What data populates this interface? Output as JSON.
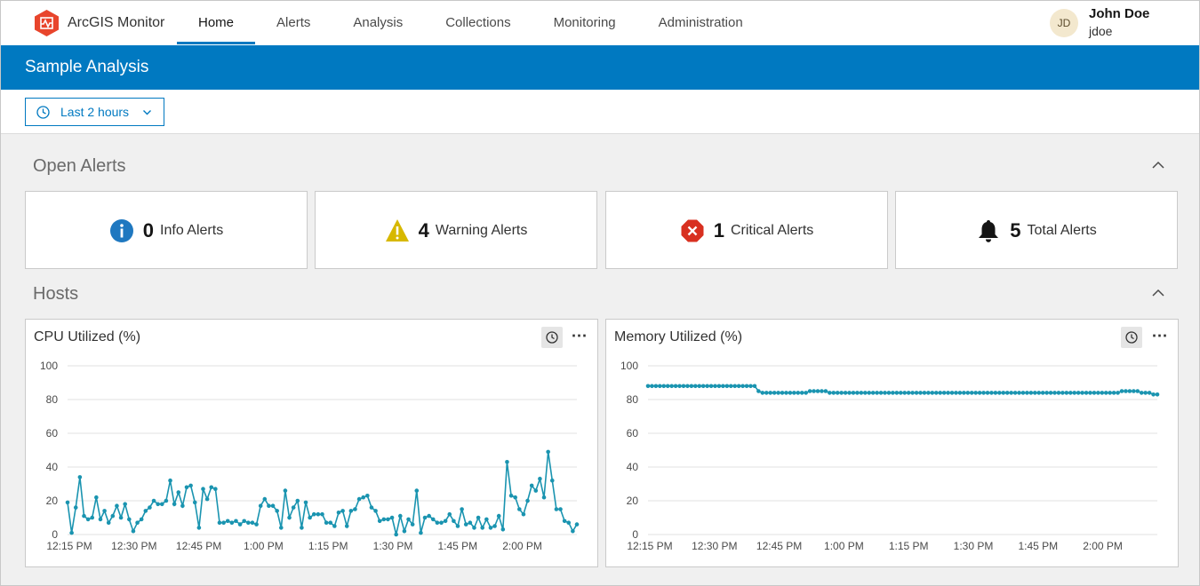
{
  "app": {
    "name": "ArcGIS Monitor",
    "brand_color": "#e8452c"
  },
  "nav": {
    "items": [
      {
        "label": "Home",
        "active": true
      },
      {
        "label": "Alerts"
      },
      {
        "label": "Analysis"
      },
      {
        "label": "Collections"
      },
      {
        "label": "Monitoring"
      },
      {
        "label": "Administration"
      }
    ]
  },
  "user": {
    "initials": "JD",
    "name": "John Doe",
    "username": "jdoe"
  },
  "banner": {
    "title": "Sample Analysis",
    "color": "#0079c1"
  },
  "time_filter": {
    "label": "Last 2 hours",
    "icon": "clock-icon"
  },
  "sections": {
    "open_alerts": "Open Alerts",
    "hosts": "Hosts"
  },
  "alerts": [
    {
      "icon": "info-icon",
      "count": "0",
      "label": "Info Alerts",
      "color": "#1f78c0"
    },
    {
      "icon": "warning-icon",
      "count": "4",
      "label": "Warning Alerts",
      "color": "#d7b800"
    },
    {
      "icon": "critical-icon",
      "count": "1",
      "label": "Critical Alerts",
      "color": "#d83020"
    },
    {
      "icon": "bell-icon",
      "count": "5",
      "label": "Total Alerts",
      "color": "#151515"
    }
  ],
  "chart_data": [
    {
      "type": "line",
      "title": "CPU Utilized (%)",
      "ylim": [
        0,
        100
      ],
      "yticks": [
        0,
        20,
        40,
        60,
        80,
        100
      ],
      "xticks": [
        "12:15 PM",
        "12:30 PM",
        "12:45 PM",
        "1:00 PM",
        "1:15 PM",
        "1:30 PM",
        "1:45 PM",
        "2:00 PM"
      ],
      "color": "#1a94b0",
      "grid": true,
      "series": [
        {
          "values": [
            19,
            1,
            16,
            34,
            11,
            9,
            10,
            22,
            9,
            14,
            7,
            11,
            17,
            10,
            18,
            9,
            2,
            7,
            9,
            14,
            16,
            20,
            18,
            18,
            20,
            32,
            18,
            25,
            17,
            28,
            29,
            19,
            4,
            27,
            21,
            28,
            27,
            7,
            7,
            8,
            7,
            8,
            6,
            8,
            7,
            7,
            6,
            17,
            21,
            17,
            17,
            14,
            4,
            26,
            10,
            16,
            20,
            4,
            19,
            10,
            12,
            12,
            12,
            7,
            7,
            5,
            13,
            14,
            5,
            14,
            15,
            21,
            22,
            23,
            16,
            14,
            8,
            9,
            9,
            10,
            0,
            11,
            2,
            9,
            6,
            26,
            1,
            10,
            11,
            9,
            7,
            7,
            8,
            12,
            8,
            5,
            15,
            6,
            7,
            4,
            10,
            4,
            9,
            4,
            5,
            11,
            3,
            43,
            23,
            22,
            15,
            12,
            20,
            29,
            26,
            33,
            22,
            49,
            32,
            15,
            15,
            8,
            7,
            2,
            6
          ]
        }
      ]
    },
    {
      "type": "line",
      "title": "Memory Utilized (%)",
      "ylim": [
        0,
        100
      ],
      "yticks": [
        0,
        20,
        40,
        60,
        80,
        100
      ],
      "xticks": [
        "12:15 PM",
        "12:30 PM",
        "12:45 PM",
        "1:00 PM",
        "1:15 PM",
        "1:30 PM",
        "1:45 PM",
        "2:00 PM"
      ],
      "color": "#1a94b0",
      "grid": true,
      "series": [
        {
          "values": [
            88,
            88,
            88,
            88,
            88,
            88,
            88,
            88,
            88,
            88,
            88,
            88,
            88,
            88,
            88,
            88,
            88,
            88,
            88,
            88,
            88,
            88,
            88,
            88,
            88,
            88,
            88,
            88,
            85,
            84,
            84,
            84,
            84,
            84,
            84,
            84,
            84,
            84,
            84,
            84,
            84,
            85,
            85,
            85,
            85,
            85,
            84,
            84,
            84,
            84,
            84,
            84,
            84,
            84,
            84,
            84,
            84,
            84,
            84,
            84,
            84,
            84,
            84,
            84,
            84,
            84,
            84,
            84,
            84,
            84,
            84,
            84,
            84,
            84,
            84,
            84,
            84,
            84,
            84,
            84,
            84,
            84,
            84,
            84,
            84,
            84,
            84,
            84,
            84,
            84,
            84,
            84,
            84,
            84,
            84,
            84,
            84,
            84,
            84,
            84,
            84,
            84,
            84,
            84,
            84,
            84,
            84,
            84,
            84,
            84,
            84,
            84,
            84,
            84,
            84,
            84,
            84,
            84,
            84,
            84,
            85,
            85,
            85,
            85,
            85,
            84,
            84,
            84,
            83,
            83
          ]
        }
      ]
    }
  ]
}
